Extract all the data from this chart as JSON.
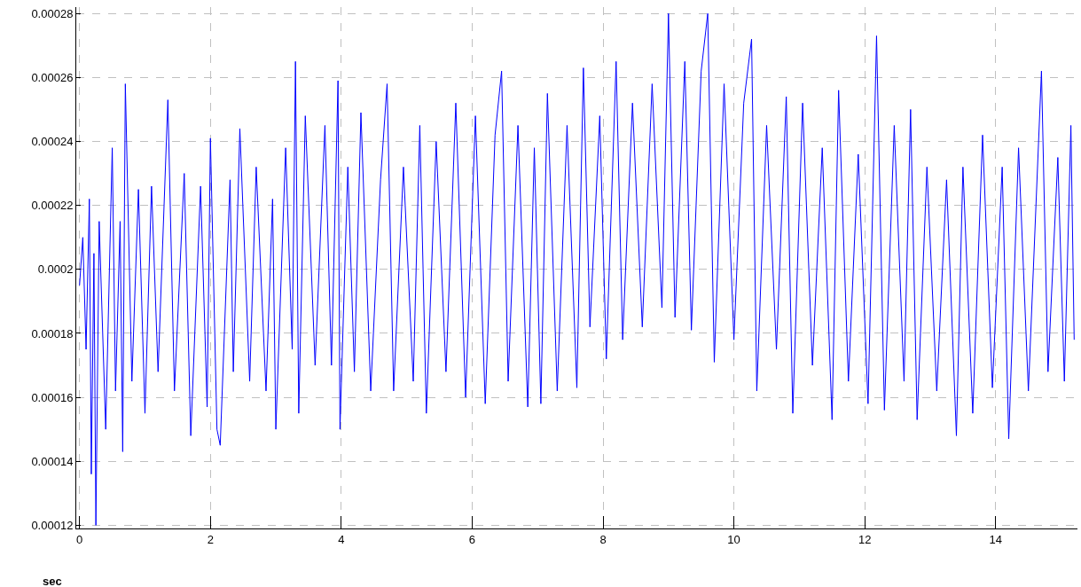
{
  "chart_data": {
    "type": "line",
    "xlabel": "sec",
    "x": [
      0,
      0.05,
      0.1,
      0.15,
      0.18,
      0.22,
      0.25,
      0.3,
      0.4,
      0.5,
      0.55,
      0.62,
      0.66,
      0.7,
      0.8,
      0.9,
      1.0,
      1.1,
      1.2,
      1.35,
      1.45,
      1.6,
      1.7,
      1.85,
      1.95,
      2.0,
      2.1,
      2.15,
      2.3,
      2.35,
      2.45,
      2.6,
      2.7,
      2.85,
      2.95,
      3.0,
      3.15,
      3.25,
      3.3,
      3.35,
      3.45,
      3.6,
      3.75,
      3.85,
      3.95,
      3.98,
      4.1,
      4.2,
      4.3,
      4.45,
      4.6,
      4.7,
      4.8,
      4.95,
      5.1,
      5.2,
      5.3,
      5.45,
      5.6,
      5.75,
      5.9,
      6.05,
      6.2,
      6.35,
      6.45,
      6.55,
      6.7,
      6.85,
      6.95,
      7.05,
      7.15,
      7.3,
      7.45,
      7.6,
      7.7,
      7.8,
      7.95,
      8.05,
      8.2,
      8.3,
      8.45,
      8.6,
      8.75,
      8.9,
      9.0,
      9.1,
      9.25,
      9.35,
      9.5,
      9.6,
      9.7,
      9.85,
      10.0,
      10.15,
      10.27,
      10.35,
      10.5,
      10.65,
      10.8,
      10.9,
      11.05,
      11.2,
      11.35,
      11.5,
      11.6,
      11.75,
      11.9,
      12.05,
      12.18,
      12.3,
      12.45,
      12.6,
      12.7,
      12.8,
      12.95,
      13.1,
      13.25,
      13.4,
      13.5,
      13.65,
      13.8,
      13.95,
      14.1,
      14.2,
      14.35,
      14.5,
      14.7,
      14.8,
      14.95,
      15.05,
      15.15,
      15.2
    ],
    "series": [
      {
        "color": "#0000ff",
        "values": [
          0.000195,
          0.00021,
          0.000175,
          0.000222,
          0.000136,
          0.000205,
          0.00012,
          0.000215,
          0.00015,
          0.000238,
          0.000162,
          0.000215,
          0.000143,
          0.000258,
          0.000165,
          0.000225,
          0.000155,
          0.000226,
          0.000168,
          0.000253,
          0.000162,
          0.00023,
          0.000148,
          0.000226,
          0.000157,
          0.000241,
          0.00015,
          0.000145,
          0.000228,
          0.000168,
          0.000244,
          0.000165,
          0.000232,
          0.000162,
          0.000222,
          0.00015,
          0.000238,
          0.000175,
          0.000265,
          0.000155,
          0.000248,
          0.00017,
          0.000245,
          0.00017,
          0.000259,
          0.00015,
          0.000232,
          0.000168,
          0.000249,
          0.000162,
          0.000228,
          0.000258,
          0.000162,
          0.000232,
          0.000165,
          0.000245,
          0.000155,
          0.00024,
          0.000168,
          0.000252,
          0.00016,
          0.000248,
          0.000158,
          0.000242,
          0.000262,
          0.000165,
          0.000245,
          0.000157,
          0.000238,
          0.000158,
          0.000255,
          0.000162,
          0.000245,
          0.000163,
          0.000263,
          0.000182,
          0.000248,
          0.000172,
          0.000265,
          0.000178,
          0.000252,
          0.000182,
          0.000258,
          0.000188,
          0.00028,
          0.000185,
          0.000265,
          0.000181,
          0.000262,
          0.00028,
          0.000171,
          0.000258,
          0.000178,
          0.000252,
          0.000272,
          0.000162,
          0.000245,
          0.000175,
          0.000254,
          0.000155,
          0.000252,
          0.00017,
          0.000238,
          0.000153,
          0.000256,
          0.000165,
          0.000236,
          0.000158,
          0.000273,
          0.000156,
          0.000245,
          0.000165,
          0.00025,
          0.000153,
          0.000232,
          0.000162,
          0.000228,
          0.000148,
          0.000232,
          0.000155,
          0.000242,
          0.000163,
          0.000232,
          0.000147,
          0.000238,
          0.000162,
          0.000262,
          0.000168,
          0.000235,
          0.000165,
          0.000245,
          0.000178
        ]
      }
    ],
    "xlim": [
      -0.05,
      15.25
    ],
    "ylim": [
      0.000119,
      0.000282
    ],
    "xticks": [
      0,
      2,
      4,
      6,
      8,
      10,
      12,
      14
    ],
    "yticks": [
      0.00012,
      0.00014,
      0.00016,
      0.00018,
      0.0002,
      0.00022,
      0.00024,
      0.00026,
      0.00028
    ],
    "grid": true,
    "line_style": "solid"
  }
}
